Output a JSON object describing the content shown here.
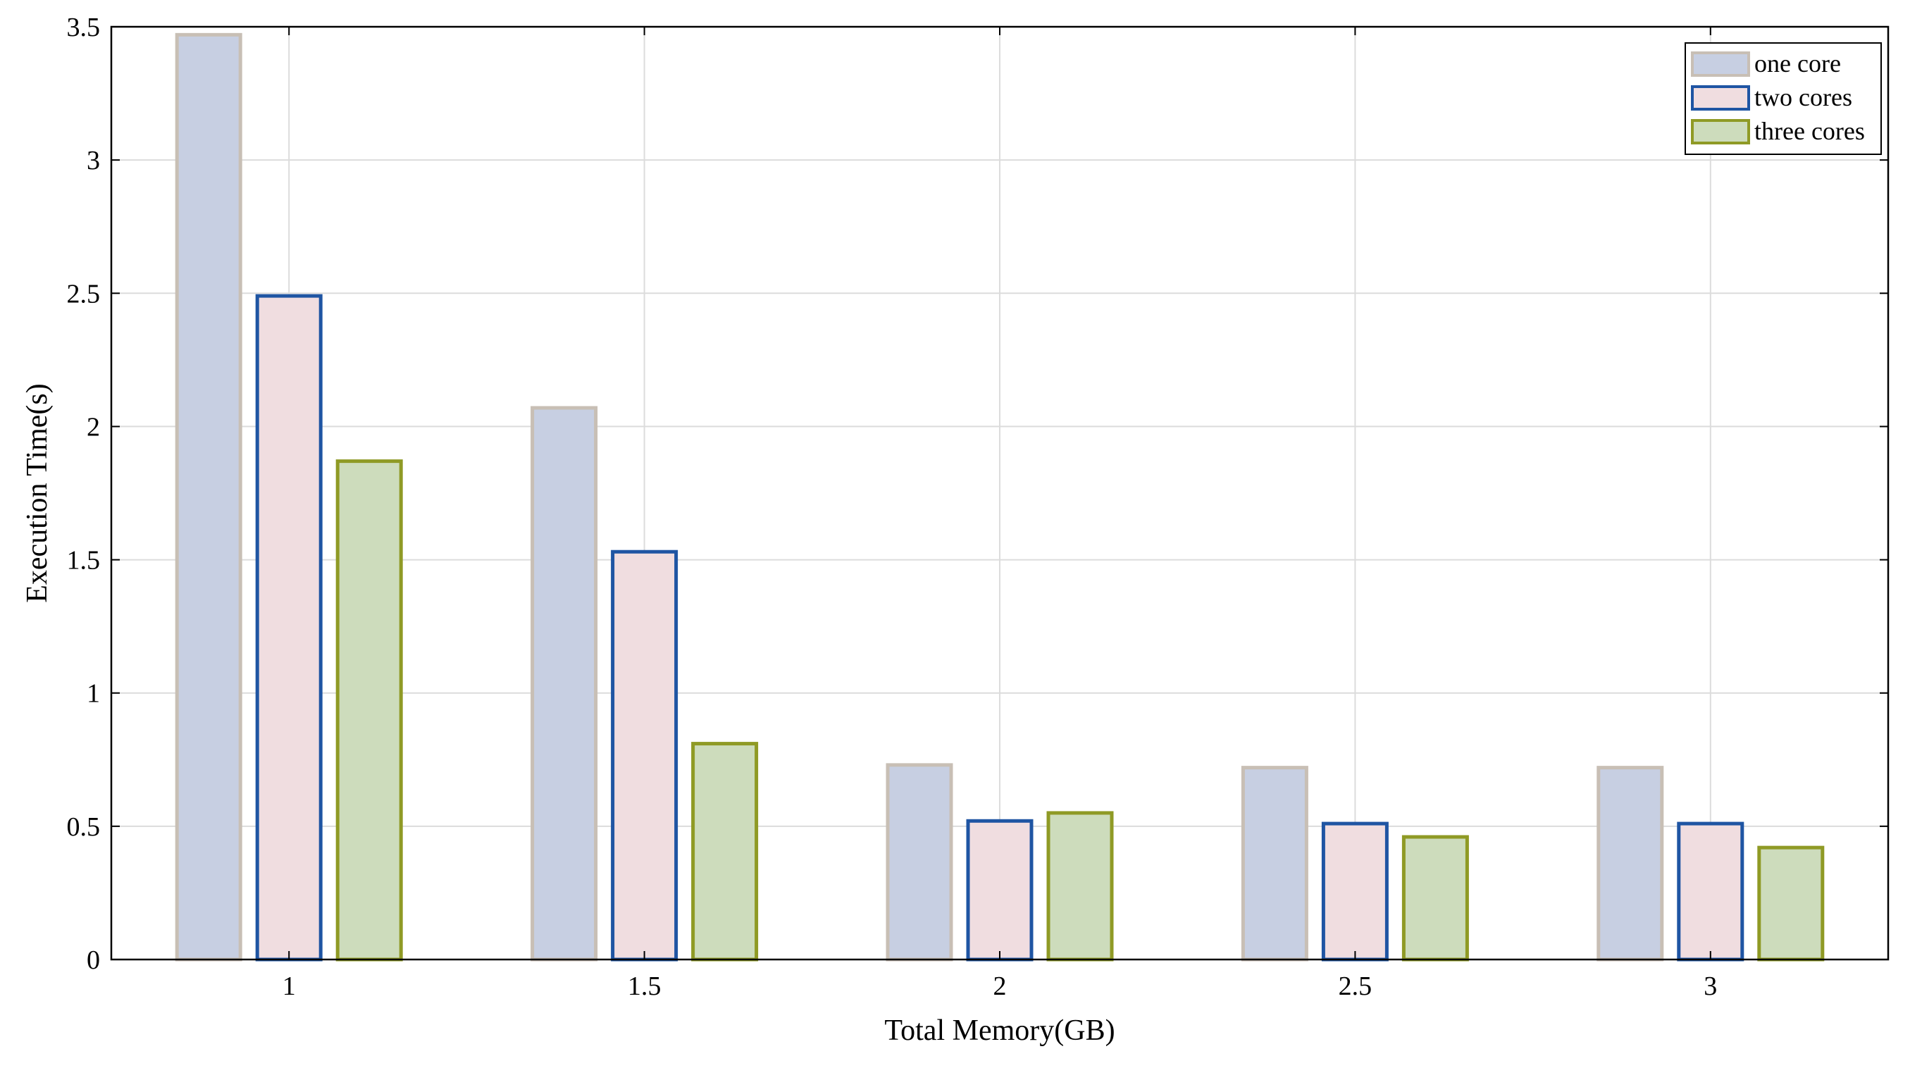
{
  "chart_data": {
    "type": "bar",
    "title": "",
    "xlabel": "Total Memory(GB)",
    "ylabel": "Execution Time(s)",
    "categories": [
      "1",
      "1.5",
      "2",
      "2.5",
      "3"
    ],
    "series": [
      {
        "name": "one core",
        "values": [
          3.47,
          2.07,
          0.73,
          0.72,
          0.72
        ],
        "fill": "#c7cfe2",
        "stroke": "#c8bfb5"
      },
      {
        "name": "two cores",
        "values": [
          2.49,
          1.53,
          0.52,
          0.51,
          0.51
        ],
        "fill": "#f0dde0",
        "stroke": "#1f55a3"
      },
      {
        "name": "three cores",
        "values": [
          1.87,
          0.81,
          0.55,
          0.46,
          0.42
        ],
        "fill": "#cddcbc",
        "stroke": "#8f9a25"
      }
    ],
    "ylim": [
      0,
      3.5
    ],
    "yticks": [
      "0",
      "0.5",
      "1",
      "1.5",
      "2",
      "2.5",
      "3",
      "3.5"
    ],
    "grid": true,
    "legend_position": "top-right",
    "colors": {
      "grid": "#dcdcdc",
      "axis": "#000000"
    }
  }
}
